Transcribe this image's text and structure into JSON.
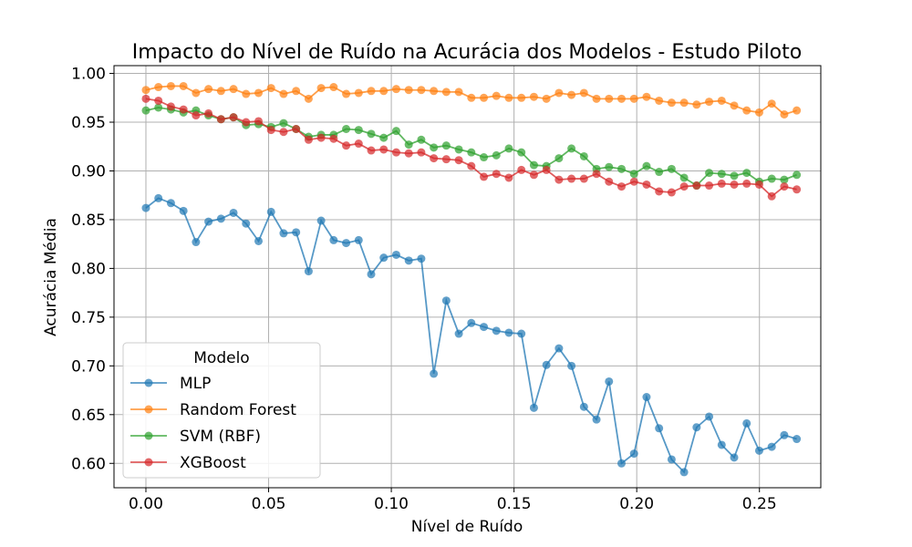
{
  "chart_data": {
    "type": "line",
    "title": "Impacto do Nível de Ruído na Acurácia dos Modelos - Estudo Piloto",
    "xlabel": "Nível de Ruído",
    "ylabel": "Acurácia Média",
    "xlim": [
      -0.013,
      0.275
    ],
    "ylim": [
      0.575,
      1.008
    ],
    "xticks": [
      0.0,
      0.05,
      0.1,
      0.15,
      0.2,
      0.25
    ],
    "xtick_labels": [
      "0.00",
      "0.05",
      "0.10",
      "0.15",
      "0.20",
      "0.25"
    ],
    "yticks": [
      0.6,
      0.65,
      0.7,
      0.75,
      0.8,
      0.85,
      0.9,
      0.95,
      1.0
    ],
    "ytick_labels": [
      "0.60",
      "0.65",
      "0.70",
      "0.75",
      "0.80",
      "0.85",
      "0.90",
      "0.95",
      "1.00"
    ],
    "grid": true,
    "legend": {
      "title": "Modelo",
      "placement": "lower-left"
    },
    "x": [
      0.0,
      0.0051,
      0.0102,
      0.0153,
      0.0204,
      0.0255,
      0.0306,
      0.0357,
      0.0408,
      0.0459,
      0.051,
      0.0561,
      0.0612,
      0.0663,
      0.0714,
      0.0765,
      0.0816,
      0.0867,
      0.0918,
      0.0969,
      0.102,
      0.1071,
      0.1122,
      0.1173,
      0.1224,
      0.1275,
      0.1326,
      0.1377,
      0.1428,
      0.1479,
      0.153,
      0.1581,
      0.1632,
      0.1683,
      0.1734,
      0.1785,
      0.1836,
      0.1887,
      0.1938,
      0.1989,
      0.204,
      0.2091,
      0.2142,
      0.2193,
      0.2244,
      0.2295,
      0.2346,
      0.2397,
      0.2448,
      0.2499,
      0.255,
      0.2601,
      0.2652
    ],
    "series": [
      {
        "name": "MLP",
        "color": "#1f77b4",
        "values": [
          0.862,
          0.872,
          0.867,
          0.859,
          0.827,
          0.848,
          0.851,
          0.857,
          0.846,
          0.828,
          0.858,
          0.836,
          0.837,
          0.797,
          0.849,
          0.829,
          0.826,
          0.829,
          0.794,
          0.811,
          0.814,
          0.808,
          0.81,
          0.692,
          0.767,
          0.733,
          0.744,
          0.74,
          0.736,
          0.734,
          0.733,
          0.657,
          0.701,
          0.718,
          0.7,
          0.658,
          0.645,
          0.684,
          0.6,
          0.61,
          0.668,
          0.636,
          0.604,
          0.591,
          0.637,
          0.648,
          0.619,
          0.606,
          0.641,
          0.613,
          0.617,
          0.629,
          0.625
        ]
      },
      {
        "name": "Random Forest",
        "color": "#ff7f0e",
        "values": [
          0.983,
          0.986,
          0.987,
          0.987,
          0.98,
          0.984,
          0.982,
          0.984,
          0.979,
          0.98,
          0.985,
          0.979,
          0.982,
          0.974,
          0.985,
          0.986,
          0.979,
          0.98,
          0.982,
          0.982,
          0.984,
          0.983,
          0.983,
          0.982,
          0.981,
          0.981,
          0.975,
          0.975,
          0.977,
          0.975,
          0.975,
          0.976,
          0.974,
          0.98,
          0.978,
          0.98,
          0.974,
          0.974,
          0.974,
          0.974,
          0.976,
          0.972,
          0.97,
          0.97,
          0.968,
          0.971,
          0.972,
          0.967,
          0.962,
          0.96,
          0.969,
          0.958,
          0.962
        ]
      },
      {
        "name": "SVM (RBF)",
        "color": "#2ca02c",
        "values": [
          0.962,
          0.965,
          0.963,
          0.96,
          0.962,
          0.957,
          0.953,
          0.955,
          0.947,
          0.948,
          0.945,
          0.949,
          0.943,
          0.935,
          0.937,
          0.937,
          0.943,
          0.942,
          0.938,
          0.934,
          0.941,
          0.927,
          0.932,
          0.924,
          0.926,
          0.922,
          0.919,
          0.914,
          0.916,
          0.923,
          0.919,
          0.906,
          0.905,
          0.913,
          0.923,
          0.915,
          0.902,
          0.904,
          0.902,
          0.897,
          0.905,
          0.899,
          0.902,
          0.893,
          0.885,
          0.898,
          0.897,
          0.895,
          0.898,
          0.889,
          0.892,
          0.891,
          0.896
        ]
      },
      {
        "name": "XGBoost",
        "color": "#d62728",
        "values": [
          0.974,
          0.972,
          0.966,
          0.963,
          0.957,
          0.959,
          0.953,
          0.955,
          0.95,
          0.951,
          0.942,
          0.94,
          0.943,
          0.932,
          0.934,
          0.933,
          0.926,
          0.928,
          0.921,
          0.922,
          0.919,
          0.918,
          0.919,
          0.913,
          0.912,
          0.911,
          0.905,
          0.894,
          0.897,
          0.893,
          0.901,
          0.896,
          0.901,
          0.891,
          0.892,
          0.892,
          0.897,
          0.889,
          0.884,
          0.889,
          0.886,
          0.879,
          0.878,
          0.884,
          0.885,
          0.885,
          0.887,
          0.886,
          0.887,
          0.886,
          0.874,
          0.884,
          0.881
        ]
      }
    ]
  }
}
